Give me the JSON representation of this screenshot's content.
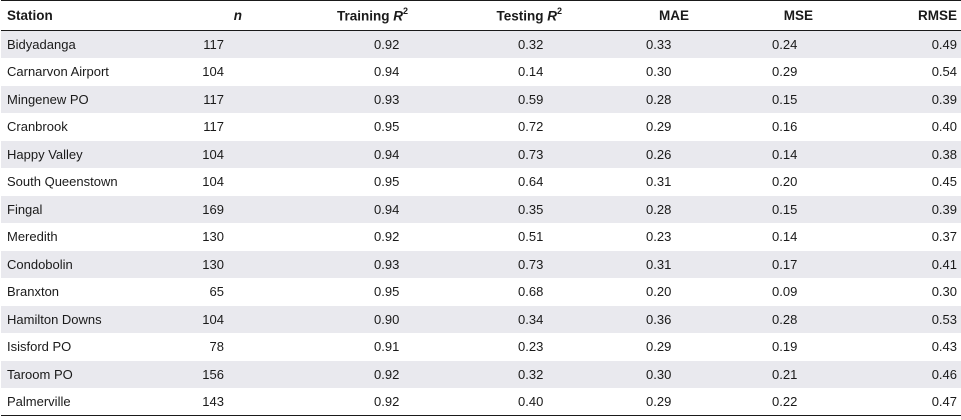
{
  "table": {
    "headers": {
      "station": "Station",
      "n": "n",
      "training_prefix": "Training ",
      "training_r": "R",
      "training_sup": "2",
      "testing_prefix": "Testing ",
      "testing_r": "R",
      "testing_sup": "2",
      "mae": "MAE",
      "mse": "MSE",
      "rmse": "RMSE"
    },
    "rows": [
      {
        "station": "Bidyadanga",
        "n": "117",
        "training_r2": "0.92",
        "testing_r2": "0.32",
        "mae": "0.33",
        "mse": "0.24",
        "rmse": "0.49"
      },
      {
        "station": "Carnarvon Airport",
        "n": "104",
        "training_r2": "0.94",
        "testing_r2": "0.14",
        "mae": "0.30",
        "mse": "0.29",
        "rmse": "0.54"
      },
      {
        "station": "Mingenew PO",
        "n": "117",
        "training_r2": "0.93",
        "testing_r2": "0.59",
        "mae": "0.28",
        "mse": "0.15",
        "rmse": "0.39"
      },
      {
        "station": "Cranbrook",
        "n": "117",
        "training_r2": "0.95",
        "testing_r2": "0.72",
        "mae": "0.29",
        "mse": "0.16",
        "rmse": "0.40"
      },
      {
        "station": "Happy Valley",
        "n": "104",
        "training_r2": "0.94",
        "testing_r2": "0.73",
        "mae": "0.26",
        "mse": "0.14",
        "rmse": "0.38"
      },
      {
        "station": "South Queenstown",
        "n": "104",
        "training_r2": "0.95",
        "testing_r2": "0.64",
        "mae": "0.31",
        "mse": "0.20",
        "rmse": "0.45"
      },
      {
        "station": "Fingal",
        "n": "169",
        "training_r2": "0.94",
        "testing_r2": "0.35",
        "mae": "0.28",
        "mse": "0.15",
        "rmse": "0.39"
      },
      {
        "station": "Meredith",
        "n": "130",
        "training_r2": "0.92",
        "testing_r2": "0.51",
        "mae": "0.23",
        "mse": "0.14",
        "rmse": "0.37"
      },
      {
        "station": "Condobolin",
        "n": "130",
        "training_r2": "0.93",
        "testing_r2": "0.73",
        "mae": "0.31",
        "mse": "0.17",
        "rmse": "0.41"
      },
      {
        "station": "Branxton",
        "n": "65",
        "training_r2": "0.95",
        "testing_r2": "0.68",
        "mae": "0.20",
        "mse": "0.09",
        "rmse": "0.30"
      },
      {
        "station": "Hamilton Downs",
        "n": "104",
        "training_r2": "0.90",
        "testing_r2": "0.34",
        "mae": "0.36",
        "mse": "0.28",
        "rmse": "0.53"
      },
      {
        "station": "Isisford PO",
        "n": "78",
        "training_r2": "0.91",
        "testing_r2": "0.23",
        "mae": "0.29",
        "mse": "0.19",
        "rmse": "0.43"
      },
      {
        "station": "Taroom PO",
        "n": "156",
        "training_r2": "0.92",
        "testing_r2": "0.32",
        "mae": "0.30",
        "mse": "0.21",
        "rmse": "0.46"
      },
      {
        "station": "Palmerville",
        "n": "143",
        "training_r2": "0.92",
        "testing_r2": "0.40",
        "mae": "0.29",
        "mse": "0.22",
        "rmse": "0.47"
      }
    ]
  }
}
